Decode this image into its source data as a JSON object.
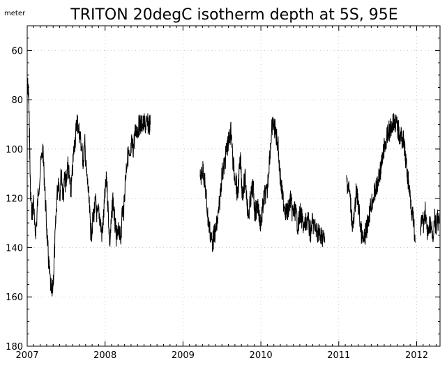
{
  "chart_data": {
    "type": "line",
    "title": "TRITON 20degC isotherm depth at 5S, 95E",
    "ylabel_unit": "meter",
    "y_inverted": true,
    "ylim": [
      180,
      50
    ],
    "xlim": [
      2007.0,
      2012.3
    ],
    "grid": true,
    "yticks": [
      60,
      80,
      100,
      120,
      140,
      160,
      180
    ],
    "yticks_label": [
      "60",
      "80",
      "100",
      "120",
      "140",
      "160",
      "180"
    ],
    "xticks": [
      2007,
      2008,
      2009,
      2010,
      2011,
      2012
    ],
    "xticks_label": [
      "2007",
      "2008",
      "2009",
      "2010",
      "2011",
      "2012"
    ],
    "colors": {
      "line": "#000000",
      "grid": "#bdbdbd",
      "frame": "#000000"
    },
    "series": [
      {
        "segments": [
          {
            "x": [
              2007.0,
              2007.01,
              2007.02,
              2007.03,
              2007.04,
              2007.06,
              2007.08,
              2007.1,
              2007.12,
              2007.14,
              2007.17,
              2007.2,
              2007.22,
              2007.24,
              2007.26,
              2007.28,
              2007.3,
              2007.32,
              2007.34,
              2007.36,
              2007.38,
              2007.4,
              2007.42,
              2007.44,
              2007.46,
              2007.48,
              2007.5,
              2007.52,
              2007.54,
              2007.56,
              2007.58,
              2007.6,
              2007.62,
              2007.64,
              2007.66,
              2007.68,
              2007.7,
              2007.72,
              2007.74,
              2007.76,
              2007.78,
              2007.8,
              2007.82,
              2007.84,
              2007.86,
              2007.88,
              2007.9,
              2007.92,
              2007.94,
              2007.96,
              2007.98,
              2008.0,
              2008.02,
              2008.04,
              2008.06,
              2008.08,
              2008.1,
              2008.12,
              2008.14,
              2008.16,
              2008.18,
              2008.2,
              2008.22,
              2008.24,
              2008.26,
              2008.28,
              2008.3,
              2008.32,
              2008.34,
              2008.36,
              2008.38,
              2008.4,
              2008.42,
              2008.44,
              2008.46,
              2008.48,
              2008.5,
              2008.52,
              2008.54,
              2008.56,
              2008.58
            ],
            "y": [
              78,
              74,
              80,
              95,
              115,
              128,
              120,
              135,
              130,
              118,
              108,
              100,
              112,
              125,
              138,
              148,
              155,
              160,
              150,
              135,
              120,
              112,
              118,
              108,
              120,
              112,
              115,
              105,
              112,
              118,
              110,
              100,
              95,
              88,
              92,
              95,
              100,
              105,
              98,
              110,
              115,
              125,
              135,
              130,
              125,
              122,
              128,
              125,
              130,
              135,
              128,
              118,
              112,
              125,
              138,
              130,
              120,
              128,
              135,
              136,
              132,
              138,
              125,
              125,
              112,
              105,
              102,
              106,
              98,
              100,
              95,
              92,
              92,
              90,
              90,
              90,
              90,
              90,
              90,
              90,
              90
            ]
          },
          {
            "x": [
              2009.22,
              2009.24,
              2009.26,
              2009.28,
              2009.3,
              2009.32,
              2009.34,
              2009.36,
              2009.38,
              2009.4,
              2009.42,
              2009.44,
              2009.46,
              2009.48,
              2009.5,
              2009.52,
              2009.54,
              2009.56,
              2009.58,
              2009.6,
              2009.62,
              2009.64,
              2009.66,
              2009.68,
              2009.7,
              2009.72,
              2009.74,
              2009.76,
              2009.78,
              2009.8,
              2009.82,
              2009.84,
              2009.86,
              2009.88,
              2009.9,
              2009.92,
              2009.94,
              2009.96,
              2009.98,
              2010.0,
              2010.02,
              2010.04,
              2010.06,
              2010.08,
              2010.1,
              2010.12,
              2010.14,
              2010.16,
              2010.18,
              2010.2,
              2010.22,
              2010.24,
              2010.26,
              2010.28,
              2010.3,
              2010.32,
              2010.34,
              2010.36,
              2010.38,
              2010.4,
              2010.42,
              2010.44,
              2010.46,
              2010.48,
              2010.5,
              2010.52,
              2010.54,
              2010.56,
              2010.58,
              2010.6,
              2010.62,
              2010.64,
              2010.66,
              2010.68,
              2010.7,
              2010.72,
              2010.74,
              2010.76,
              2010.78,
              2010.8,
              2010.82
            ],
            "y": [
              112,
              110,
              108,
              114,
              120,
              128,
              132,
              136,
              138,
              135,
              133,
              130,
              125,
              118,
              110,
              108,
              105,
              100,
              98,
              95,
              92,
              105,
              110,
              112,
              120,
              110,
              105,
              118,
              115,
              112,
              120,
              128,
              122,
              118,
              115,
              125,
              125,
              122,
              128,
              130,
              125,
              120,
              118,
              118,
              108,
              100,
              92,
              90,
              92,
              95,
              98,
              108,
              115,
              120,
              122,
              125,
              126,
              124,
              120,
              125,
              126,
              125,
              128,
              132,
              126,
              128,
              130,
              132,
              130,
              128,
              132,
              134,
              130,
              131,
              132,
              134,
              133,
              136,
              135,
              136,
              138
            ]
          },
          {
            "x": [
              2011.1,
              2011.12,
              2011.14,
              2011.16,
              2011.18,
              2011.2,
              2011.22,
              2011.24,
              2011.26,
              2011.28,
              2011.3,
              2011.32,
              2011.34,
              2011.36,
              2011.38,
              2011.4,
              2011.42,
              2011.44,
              2011.46,
              2011.48,
              2011.5,
              2011.52,
              2011.54,
              2011.56,
              2011.58,
              2011.6,
              2011.62,
              2011.64,
              2011.66,
              2011.68,
              2011.7,
              2011.72,
              2011.74,
              2011.76,
              2011.78,
              2011.8,
              2011.82,
              2011.84,
              2011.86,
              2011.88,
              2011.9,
              2011.92,
              2011.94,
              2011.96,
              2011.98
            ],
            "y": [
              112,
              115,
              118,
              125,
              132,
              128,
              118,
              120,
              125,
              132,
              136,
              138,
              135,
              132,
              128,
              125,
              122,
              120,
              118,
              116,
              115,
              110,
              108,
              105,
              100,
              98,
              95,
              93,
              92,
              90,
              89,
              89,
              90,
              92,
              94,
              95,
              96,
              98,
              105,
              110,
              115,
              120,
              125,
              130,
              138
            ]
          },
          {
            "x": [
              2012.05,
              2012.07,
              2012.09,
              2012.11,
              2012.13,
              2012.15,
              2012.17,
              2012.19,
              2012.21,
              2012.23,
              2012.25,
              2012.27,
              2012.29
            ],
            "y": [
              134,
              128,
              130,
              125,
              133,
              136,
              130,
              132,
              135,
              128,
              132,
              129,
              130
            ]
          }
        ]
      }
    ]
  }
}
